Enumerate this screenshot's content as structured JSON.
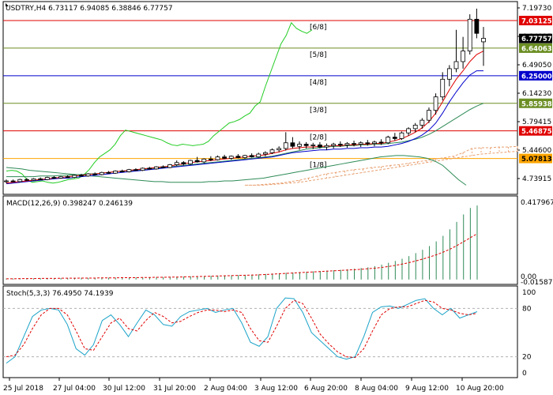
{
  "chart_data": [
    {
      "type": "candlestick",
      "title": "USDTRY,H4  6.73117 6.94085 6.38846 6.77757",
      "ylim": [
        4.57,
        7.3
      ],
      "y_ticks": [
        "7.19730",
        "6.84915",
        "6.49050",
        "6.14230",
        "5.79415",
        "5.44600",
        "4.73915"
      ],
      "price_labels": [
        {
          "text": "7.03125",
          "value": 7.03125,
          "color": "#e00000",
          "fg": "#ffffff"
        },
        {
          "text": "6.77757",
          "value": 6.77757,
          "color": "#000000",
          "fg": "#ffffff"
        },
        {
          "text": "6.64063",
          "value": 6.64063,
          "color": "#6b8e23",
          "fg": "#ffffff"
        },
        {
          "text": "6.25000",
          "value": 6.25,
          "color": "#0000cc",
          "fg": "#ffffff"
        },
        {
          "text": "5.85938",
          "value": 5.85938,
          "color": "#6b8e23",
          "fg": "#ffffff"
        },
        {
          "text": "5.46875",
          "value": 5.46875,
          "color": "#e00000",
          "fg": "#ffffff"
        },
        {
          "text": "5.07813",
          "value": 5.07813,
          "color": "#ffa500",
          "fg": "#000000"
        }
      ],
      "murrey_levels": [
        {
          "label": "[6/8]",
          "value": 7.03125,
          "color": "#e00000"
        },
        {
          "label": "[5/8]",
          "value": 6.64063,
          "color": "#6b8e23"
        },
        {
          "label": "[4/8]",
          "value": 6.25,
          "color": "#0000cc"
        },
        {
          "label": "[3/8]",
          "value": 5.85938,
          "color": "#6b8e23"
        },
        {
          "label": "[2/8]",
          "value": 5.46875,
          "color": "#e00000"
        },
        {
          "label": "[1/8]",
          "value": 5.07813,
          "color": "#ffa500"
        }
      ],
      "candles_ohlc": [
        [
          4.75,
          4.78,
          4.73,
          4.76
        ],
        [
          4.76,
          4.78,
          4.74,
          4.75
        ],
        [
          4.75,
          4.79,
          4.74,
          4.78
        ],
        [
          4.78,
          4.8,
          4.76,
          4.77
        ],
        [
          4.77,
          4.8,
          4.76,
          4.79
        ],
        [
          4.79,
          4.81,
          4.77,
          4.78
        ],
        [
          4.78,
          4.82,
          4.77,
          4.81
        ],
        [
          4.81,
          4.83,
          4.79,
          4.8
        ],
        [
          4.8,
          4.83,
          4.79,
          4.82
        ],
        [
          4.82,
          4.84,
          4.8,
          4.81
        ],
        [
          4.81,
          4.85,
          4.8,
          4.84
        ],
        [
          4.84,
          4.86,
          4.82,
          4.83
        ],
        [
          4.83,
          4.87,
          4.82,
          4.86
        ],
        [
          4.86,
          4.88,
          4.84,
          4.85
        ],
        [
          4.85,
          4.89,
          4.84,
          4.88
        ],
        [
          4.88,
          4.9,
          4.86,
          4.87
        ],
        [
          4.87,
          4.91,
          4.86,
          4.9
        ],
        [
          4.9,
          4.92,
          4.88,
          4.89
        ],
        [
          4.89,
          4.93,
          4.88,
          4.92
        ],
        [
          4.92,
          4.94,
          4.9,
          4.91
        ],
        [
          4.91,
          4.95,
          4.9,
          4.94
        ],
        [
          4.94,
          4.96,
          4.92,
          4.93
        ],
        [
          4.93,
          4.97,
          4.92,
          4.96
        ],
        [
          4.96,
          4.98,
          4.94,
          4.95
        ],
        [
          4.95,
          5.0,
          4.94,
          4.99
        ],
        [
          4.99,
          5.05,
          4.97,
          5.02
        ],
        [
          5.02,
          5.04,
          4.98,
          5.0
        ],
        [
          5.0,
          5.06,
          4.99,
          5.05
        ],
        [
          5.05,
          5.1,
          5.02,
          5.03
        ],
        [
          5.03,
          5.08,
          5.01,
          5.07
        ],
        [
          5.07,
          5.11,
          5.04,
          5.06
        ],
        [
          5.06,
          5.12,
          5.05,
          5.1
        ],
        [
          5.1,
          5.13,
          5.07,
          5.08
        ],
        [
          5.08,
          5.12,
          5.06,
          5.11
        ],
        [
          5.11,
          5.14,
          5.08,
          5.09
        ],
        [
          5.09,
          5.13,
          5.07,
          5.12
        ],
        [
          5.12,
          5.15,
          5.09,
          5.1
        ],
        [
          5.1,
          5.16,
          5.09,
          5.14
        ],
        [
          5.14,
          5.18,
          5.11,
          5.16
        ],
        [
          5.16,
          5.22,
          5.14,
          5.2
        ],
        [
          5.2,
          5.25,
          5.17,
          5.22
        ],
        [
          5.22,
          5.45,
          5.19,
          5.3
        ],
        [
          5.3,
          5.38,
          5.22,
          5.25
        ],
        [
          5.25,
          5.32,
          5.2,
          5.28
        ],
        [
          5.28,
          5.31,
          5.22,
          5.26
        ],
        [
          5.26,
          5.3,
          5.21,
          5.27
        ],
        [
          5.27,
          5.31,
          5.22,
          5.24
        ],
        [
          5.24,
          5.29,
          5.2,
          5.26
        ],
        [
          5.26,
          5.3,
          5.22,
          5.28
        ],
        [
          5.28,
          5.32,
          5.24,
          5.27
        ],
        [
          5.27,
          5.31,
          5.23,
          5.29
        ],
        [
          5.29,
          5.33,
          5.25,
          5.28
        ],
        [
          5.28,
          5.32,
          5.24,
          5.3
        ],
        [
          5.3,
          5.34,
          5.26,
          5.29
        ],
        [
          5.29,
          5.33,
          5.25,
          5.31
        ],
        [
          5.31,
          5.35,
          5.27,
          5.3
        ],
        [
          5.3,
          5.4,
          5.28,
          5.38
        ],
        [
          5.38,
          5.44,
          5.33,
          5.36
        ],
        [
          5.36,
          5.46,
          5.34,
          5.44
        ],
        [
          5.44,
          5.52,
          5.4,
          5.5
        ],
        [
          5.5,
          5.58,
          5.45,
          5.55
        ],
        [
          5.55,
          5.65,
          5.5,
          5.62
        ],
        [
          5.62,
          5.8,
          5.58,
          5.76
        ],
        [
          5.76,
          6.0,
          5.7,
          5.95
        ],
        [
          5.95,
          6.3,
          5.9,
          6.2
        ],
        [
          6.2,
          6.4,
          6.1,
          6.35
        ],
        [
          6.35,
          6.9,
          6.3,
          6.45
        ],
        [
          6.45,
          6.8,
          6.35,
          6.6
        ],
        [
          6.6,
          7.12,
          6.55,
          7.05
        ],
        [
          7.05,
          7.2,
          6.78,
          6.85
        ],
        [
          6.73,
          6.94,
          6.39,
          6.78
        ]
      ],
      "overlay_lines": [
        "moving averages (red, dark blue, teal)",
        "Murrey Math levels",
        "indicator line (green)",
        "Ichimoku-style cloud (orange dashed)"
      ],
      "ma_red": [
        4.73,
        4.74,
        4.75,
        4.76,
        4.77,
        4.78,
        4.79,
        4.8,
        4.81,
        4.82,
        4.83,
        4.84,
        4.85,
        4.86,
        4.87,
        4.88,
        4.89,
        4.9,
        4.91,
        4.92,
        4.93,
        4.94,
        4.95,
        4.96,
        4.97,
        4.99,
        5.0,
        5.02,
        5.03,
        5.04,
        5.05,
        5.06,
        5.07,
        5.08,
        5.09,
        5.1,
        5.11,
        5.12,
        5.13,
        5.15,
        5.17,
        5.2,
        5.22,
        5.23,
        5.24,
        5.24,
        5.25,
        5.25,
        5.26,
        5.26,
        5.27,
        5.27,
        5.28,
        5.28,
        5.29,
        5.29,
        5.31,
        5.33,
        5.36,
        5.4,
        5.45,
        5.51,
        5.6,
        5.72,
        5.88,
        6.05,
        6.2,
        6.32,
        6.45,
        6.55,
        6.6
      ],
      "ma_blue": [
        4.72,
        4.73,
        4.74,
        4.75,
        4.76,
        4.77,
        4.78,
        4.79,
        4.8,
        4.8,
        4.81,
        4.82,
        4.83,
        4.84,
        4.85,
        4.86,
        4.87,
        4.88,
        4.89,
        4.9,
        4.91,
        4.92,
        4.93,
        4.94,
        4.95,
        4.96,
        4.97,
        4.98,
        4.99,
        5.0,
        5.01,
        5.02,
        5.03,
        5.04,
        5.05,
        5.06,
        5.07,
        5.08,
        5.09,
        5.1,
        5.12,
        5.14,
        5.16,
        5.17,
        5.18,
        5.19,
        5.2,
        5.2,
        5.21,
        5.21,
        5.22,
        5.22,
        5.23,
        5.23,
        5.24,
        5.24,
        5.25,
        5.27,
        5.29,
        5.32,
        5.36,
        5.41,
        5.48,
        5.58,
        5.72,
        5.88,
        6.02,
        6.15,
        6.26,
        6.32,
        6.32
      ],
      "ma_teal": [
        4.82,
        4.82,
        4.82,
        4.82,
        4.82,
        4.83,
        4.83,
        4.83,
        4.84,
        4.84,
        4.85,
        4.85,
        4.86,
        4.86,
        4.87,
        4.88,
        4.89,
        4.9,
        4.9,
        4.91,
        4.92,
        4.93,
        4.94,
        4.95,
        4.96,
        4.97,
        4.98,
        4.99,
        5.0,
        5.01,
        5.02,
        5.03,
        5.04,
        5.05,
        5.06,
        5.07,
        5.08,
        5.09,
        5.1,
        5.11,
        5.13,
        5.15,
        5.17,
        5.19,
        5.21,
        5.22,
        5.23,
        5.24,
        5.25,
        5.25,
        5.26,
        5.26,
        5.27,
        5.27,
        5.28,
        5.28,
        5.29,
        5.3,
        5.31,
        5.33,
        5.35,
        5.38,
        5.42,
        5.47,
        5.53,
        5.59,
        5.65,
        5.71,
        5.77,
        5.82,
        5.86
      ],
      "green_line": [
        4.9,
        4.91,
        4.9,
        4.86,
        4.78,
        4.74,
        4.75,
        4.76,
        4.74,
        4.73,
        4.74,
        4.76,
        4.78,
        4.79,
        4.8,
        4.85,
        4.92,
        5.02,
        5.1,
        5.15,
        5.2,
        5.28,
        5.4,
        5.48,
        5.46,
        5.44,
        5.42,
        5.4,
        5.38,
        5.36,
        5.34,
        5.3,
        5.27,
        5.26,
        5.28,
        5.27,
        5.26,
        5.27,
        5.28,
        5.32,
        5.4,
        5.46,
        5.52,
        5.58,
        5.6,
        5.63,
        5.68,
        5.72,
        5.82,
        5.88,
        6.1,
        6.3,
        6.5,
        6.7,
        6.82,
        7.0,
        6.92,
        6.88,
        6.85,
        6.9
      ],
      "lower_teal_line": [
        4.95,
        4.94,
        4.93,
        4.91,
        4.9,
        4.89,
        4.88,
        4.87,
        4.86,
        4.85,
        4.84,
        4.83,
        4.82,
        4.81,
        4.8,
        4.79,
        4.78,
        4.77,
        4.76,
        4.75,
        4.75,
        4.74,
        4.74,
        4.74,
        4.74,
        4.74,
        4.75,
        4.75,
        4.76,
        4.76,
        4.77,
        4.78,
        4.79,
        4.8,
        4.82,
        4.84,
        4.86,
        4.88,
        4.9,
        4.92,
        4.94,
        4.96,
        4.98,
        5.0,
        5.02,
        5.04,
        5.06,
        5.08,
        5.1,
        5.11,
        5.12,
        5.12,
        5.11,
        5.1,
        5.08,
        5.04,
        4.98,
        4.88,
        4.78,
        4.7
      ],
      "cloud_upper": [
        4.7,
        4.7,
        4.71,
        4.72,
        4.73,
        4.75,
        4.77,
        4.8,
        4.83,
        4.86,
        4.88,
        4.9,
        4.92,
        4.93,
        4.95,
        4.96,
        4.98,
        4.99,
        5.01,
        5.03,
        5.05,
        5.07,
        5.09,
        5.11,
        5.16,
        5.22,
        5.23,
        5.23,
        5.24,
        5.24,
        5.25
      ],
      "cloud_lower": [
        4.7,
        4.7,
        4.7,
        4.71,
        4.72,
        4.73,
        4.74,
        4.76,
        4.78,
        4.8,
        4.82,
        4.84,
        4.86,
        4.88,
        4.9,
        4.92,
        4.94,
        4.96,
        4.98,
        5.0,
        5.02,
        5.04,
        5.06,
        5.08,
        5.1,
        5.12,
        5.14,
        5.15,
        5.16,
        5.17,
        5.18
      ]
    },
    {
      "type": "bar",
      "title": "MACD(12,26,9) 0.398247 0.246139",
      "ylim": [
        -0.005,
        0.42
      ],
      "y_ticks": [
        "0.417967",
        "0.00",
        "-0.015871"
      ],
      "histogram": [
        0.005,
        0.005,
        0.006,
        0.006,
        0.006,
        0.007,
        0.007,
        0.007,
        0.008,
        0.008,
        0.008,
        0.009,
        0.009,
        0.009,
        0.01,
        0.01,
        0.01,
        0.011,
        0.011,
        0.011,
        0.012,
        0.012,
        0.013,
        0.013,
        0.014,
        0.015,
        0.016,
        0.017,
        0.018,
        0.019,
        0.02,
        0.021,
        0.022,
        0.023,
        0.024,
        0.025,
        0.026,
        0.028,
        0.03,
        0.032,
        0.034,
        0.036,
        0.038,
        0.04,
        0.042,
        0.044,
        0.046,
        0.048,
        0.05,
        0.052,
        0.055,
        0.058,
        0.062,
        0.066,
        0.072,
        0.08,
        0.09,
        0.1,
        0.112,
        0.126,
        0.142,
        0.16,
        0.18,
        0.205,
        0.235,
        0.27,
        0.31,
        0.35,
        0.385,
        0.398
      ],
      "signal": [
        0.004,
        0.004,
        0.005,
        0.005,
        0.005,
        0.006,
        0.006,
        0.006,
        0.007,
        0.007,
        0.007,
        0.008,
        0.008,
        0.008,
        0.009,
        0.009,
        0.009,
        0.01,
        0.01,
        0.01,
        0.011,
        0.011,
        0.012,
        0.012,
        0.013,
        0.013,
        0.014,
        0.015,
        0.016,
        0.017,
        0.018,
        0.019,
        0.02,
        0.021,
        0.022,
        0.023,
        0.024,
        0.025,
        0.027,
        0.029,
        0.031,
        0.033,
        0.035,
        0.037,
        0.039,
        0.041,
        0.043,
        0.045,
        0.047,
        0.049,
        0.051,
        0.053,
        0.055,
        0.058,
        0.061,
        0.065,
        0.07,
        0.076,
        0.083,
        0.091,
        0.1,
        0.11,
        0.121,
        0.133,
        0.147,
        0.163,
        0.182,
        0.203,
        0.225,
        0.246
      ]
    },
    {
      "type": "line",
      "title": "Stoch(5,3,3) 76.4950 74.1939",
      "ylim": [
        0,
        100
      ],
      "y_ticks": [
        "100",
        "80",
        "20",
        "0"
      ],
      "dashed_levels": [
        80,
        20
      ],
      "series": [
        {
          "name": "",
          "color": "#1aa3c8",
          "values": [
            12,
            20,
            45,
            70,
            78,
            80,
            78,
            60,
            30,
            22,
            35,
            65,
            72,
            60,
            45,
            62,
            78,
            72,
            60,
            58,
            70,
            76,
            78,
            80,
            75,
            78,
            80,
            62,
            38,
            33,
            45,
            80,
            93,
            92,
            75,
            50,
            40,
            30,
            20,
            17,
            20,
            45,
            75,
            82,
            83,
            80,
            85,
            90,
            92,
            80,
            72,
            80,
            68,
            72,
            76
          ]
        },
        {
          "name": "",
          "color": "#e00000",
          "values": [
            20,
            22,
            35,
            55,
            72,
            80,
            80,
            72,
            52,
            30,
            28,
            45,
            62,
            68,
            55,
            52,
            65,
            75,
            70,
            62,
            64,
            70,
            75,
            78,
            78,
            76,
            78,
            75,
            55,
            40,
            38,
            58,
            80,
            90,
            86,
            68,
            48,
            36,
            26,
            20,
            19,
            30,
            52,
            72,
            80,
            82,
            82,
            86,
            90,
            88,
            80,
            78,
            74,
            72,
            74
          ]
        }
      ]
    }
  ],
  "x_axis": {
    "labels": [
      "25 Jul 2018",
      "27 Jul 04:00",
      "30 Jul 12:00",
      "31 Jul 20:00",
      "2 Aug 04:00",
      "3 Aug 12:00",
      "6 Aug 20:00",
      "8 Aug 04:00",
      "9 Aug 12:00",
      "10 Aug 20:00"
    ]
  },
  "colors": {
    "up_candle_fill": "#ffffff",
    "down_candle_fill": "#000000",
    "grid_line": "#e8e8e8",
    "macd_hist": "#2e8b57",
    "macd_signal": "#e00000",
    "green_line": "#22cc22",
    "teal_line": "#2e8b57",
    "cloud": "#e8a070"
  }
}
